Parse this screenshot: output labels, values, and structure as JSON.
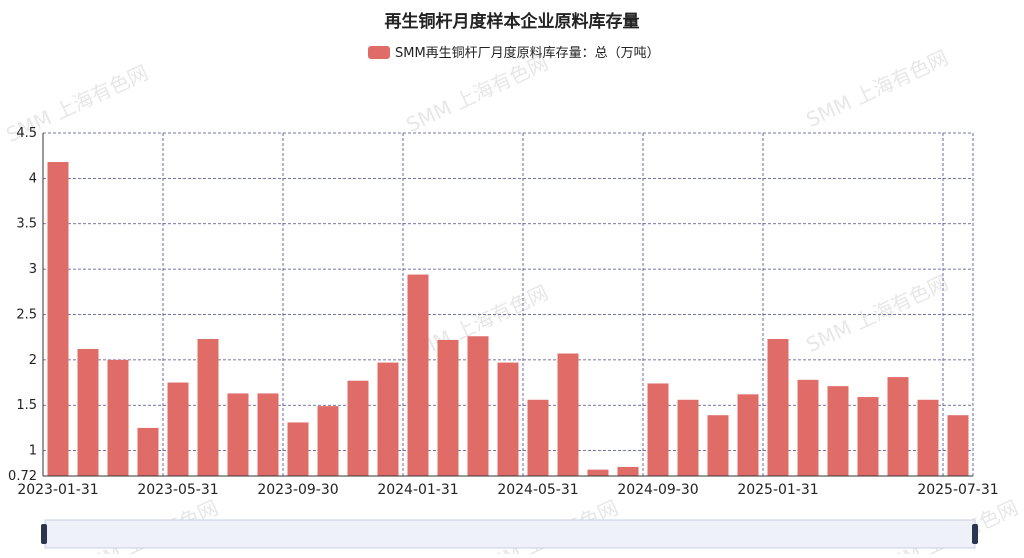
{
  "chart_data": {
    "type": "bar",
    "title": "再生铜杆月度样本企业原料库存量",
    "watermark": "SMM 上海有色网",
    "categories": [
      "2023-01-31",
      null,
      null,
      null,
      "2023-05-31",
      null,
      null,
      null,
      "2023-09-30",
      null,
      null,
      null,
      "2024-01-31",
      null,
      null,
      null,
      "2024-05-31",
      null,
      null,
      null,
      "2024-09-30",
      null,
      null,
      null,
      "2025-01-31",
      null,
      null,
      null,
      null,
      null,
      "2025-07-31"
    ],
    "series": [
      {
        "name": "SMM再生铜杆厂月度原料库存量：总（万吨）",
        "color": "#e06c68",
        "values": [
          4.18,
          2.12,
          2.0,
          1.25,
          1.75,
          2.23,
          1.63,
          1.63,
          1.31,
          1.49,
          1.77,
          1.97,
          2.94,
          2.22,
          2.26,
          1.97,
          1.56,
          2.07,
          0.79,
          0.82,
          1.74,
          1.56,
          1.39,
          1.62,
          2.23,
          1.78,
          1.71,
          1.59,
          1.81,
          1.56,
          1.39
        ]
      }
    ],
    "ylim": [
      0.72,
      4.5
    ],
    "yticks": [
      0.72,
      1,
      {
        "value": 1.5,
        "label": "1.5"
      },
      2,
      {
        "value": 2.5,
        "label": "2.5"
      },
      3,
      {
        "value": 3.5,
        "label": "3.5"
      },
      4,
      {
        "value": 4.5,
        "label": "4.5"
      }
    ],
    "grid": true
  }
}
